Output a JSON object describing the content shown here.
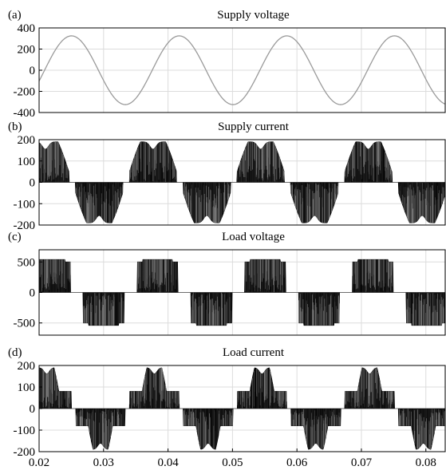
{
  "chart_data": [
    {
      "panel_label": "(a)",
      "type": "line",
      "title": "Supply voltage",
      "xlabel": "",
      "ylabel": "",
      "xlim": [
        0.02,
        0.083
      ],
      "ylim": [
        -400,
        400
      ],
      "yticks": [
        400,
        200,
        0,
        -200,
        -400
      ],
      "grid": true,
      "series": [
        {
          "waveform": "sine",
          "amplitude": 325,
          "period": 0.0167,
          "phase_zero_cross": 0.0125,
          "color": "#9a9a9a"
        }
      ]
    },
    {
      "panel_label": "(b)",
      "type": "line",
      "title": "Supply current",
      "xlabel": "",
      "ylabel": "",
      "xlim": [
        0.02,
        0.083
      ],
      "ylim": [
        -200,
        200
      ],
      "yticks": [
        200,
        100,
        0,
        -100,
        -200
      ],
      "grid": true,
      "series": [
        {
          "waveform": "pwm-switched current, twin-hump envelope",
          "peak": 190,
          "period": 0.0167,
          "positive_half_start": 0.02,
          "color": "#111111"
        }
      ]
    },
    {
      "panel_label": "(c)",
      "type": "line",
      "title": "Load voltage",
      "xlabel": "",
      "ylabel": "",
      "xlim": [
        0.02,
        0.083
      ],
      "ylim": [
        -700,
        700
      ],
      "yticks": [
        500,
        0,
        -500
      ],
      "grid": true,
      "series": [
        {
          "waveform": "pwm-switched voltage, two-level envelope",
          "peak": 540,
          "period": 0.0167,
          "color": "#111111"
        }
      ]
    },
    {
      "panel_label": "(d)",
      "type": "line",
      "title": "Load current",
      "xlabel": "",
      "ylabel": "",
      "xlim": [
        0.02,
        0.083
      ],
      "ylim": [
        -200,
        200
      ],
      "yticks": [
        200,
        100,
        0,
        -100,
        -200
      ],
      "xticks": [
        0.02,
        0.03,
        0.04,
        0.05,
        0.06,
        0.07,
        0.08
      ],
      "xtick_labels": [
        "0.02",
        "0.03",
        "0.04",
        "0.05",
        "0.06",
        "0.07",
        "0.08"
      ],
      "grid": true,
      "series": [
        {
          "waveform": "pwm-switched stepped current",
          "peak": 190,
          "step_level": 80,
          "period": 0.0167,
          "color": "#111111"
        }
      ]
    }
  ]
}
